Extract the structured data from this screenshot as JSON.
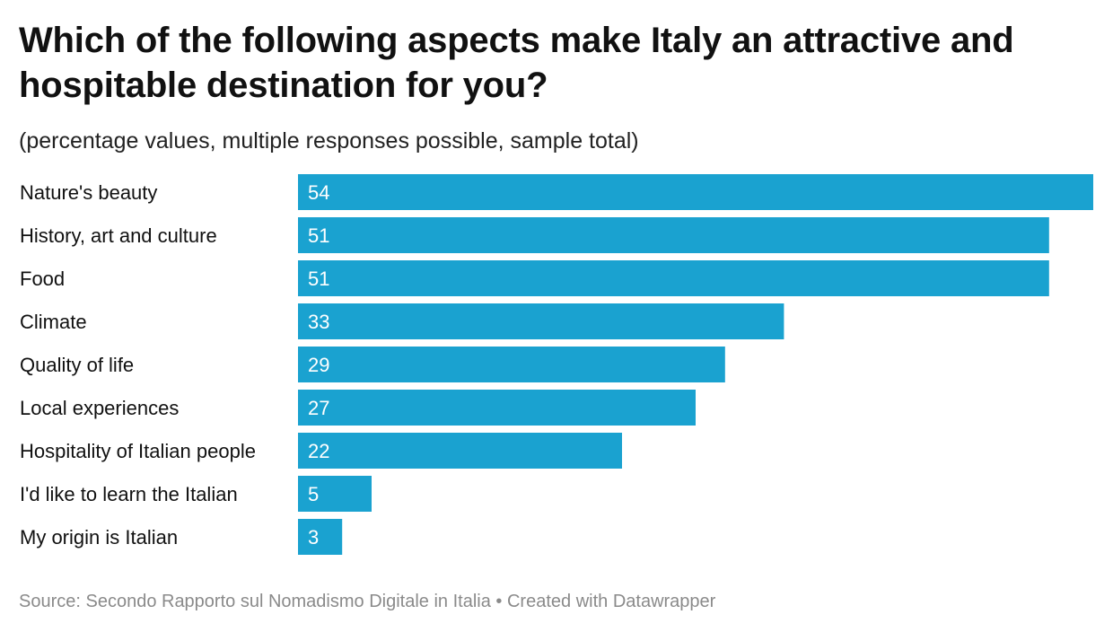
{
  "header": {
    "title": "Which of the following aspects make Italy an attractive and hospitable destination for you?",
    "subtitle": "(percentage values, multiple responses possible, sample total)"
  },
  "footer": {
    "source": "Source: Secondo Rapporto sul Nomadismo Digitale in Italia",
    "separator": "•",
    "credit": "Created with Datawrapper"
  },
  "colors": {
    "bar": "#1aa2d0",
    "bar_label": "#ffffff",
    "category_label": "#111111",
    "footer": "#8a8a8a"
  },
  "chart_data": {
    "type": "bar",
    "orientation": "horizontal",
    "title": "Which of the following aspects make Italy an attractive and hospitable destination for you?",
    "subtitle": "(percentage values, multiple responses possible, sample total)",
    "categories": [
      "Nature's beauty",
      "History, art and culture",
      "Food",
      "Climate",
      "Quality of life",
      "Local experiences",
      "Hospitality of Italian people",
      "I'd like to learn the Italian",
      "My origin is Italian"
    ],
    "values": [
      54,
      51,
      51,
      33,
      29,
      27,
      22,
      5,
      3
    ],
    "xlim": [
      0,
      54
    ],
    "grid": false,
    "legend": "none",
    "data_labels": "inside-left"
  }
}
